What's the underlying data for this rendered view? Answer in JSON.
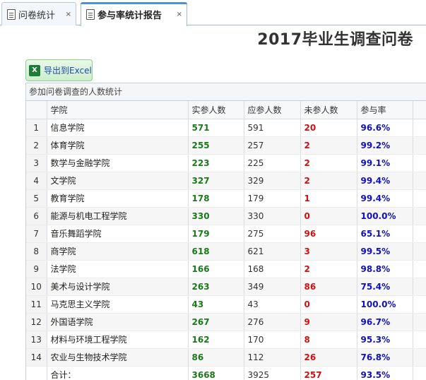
{
  "tabs": [
    {
      "label": "问卷统计",
      "close": "×",
      "active": false
    },
    {
      "label": "参与率统计报告",
      "close": "×",
      "active": true
    }
  ],
  "page_title": "2017毕业生调查问卷",
  "export_button": {
    "icon": "excel-icon",
    "label": "导出到Excel"
  },
  "grid": {
    "caption": "参加问卷调查的人数统计",
    "columns": [
      "学院",
      "实参人数",
      "应参人数",
      "未参人数",
      "参与率"
    ],
    "rows": [
      {
        "no": "1",
        "school": "信息学院",
        "actual": "571",
        "expected": "591",
        "absent": "20",
        "rate": "96.6%"
      },
      {
        "no": "2",
        "school": "体育学院",
        "actual": "255",
        "expected": "257",
        "absent": "2",
        "rate": "99.2%"
      },
      {
        "no": "3",
        "school": "数学与金融学院",
        "actual": "223",
        "expected": "225",
        "absent": "2",
        "rate": "99.1%"
      },
      {
        "no": "4",
        "school": "文学院",
        "actual": "327",
        "expected": "329",
        "absent": "2",
        "rate": "99.4%"
      },
      {
        "no": "5",
        "school": "教育学院",
        "actual": "178",
        "expected": "179",
        "absent": "1",
        "rate": "99.4%"
      },
      {
        "no": "6",
        "school": "能源与机电工程学院",
        "actual": "330",
        "expected": "330",
        "absent": "0",
        "rate": "100.0%"
      },
      {
        "no": "7",
        "school": "音乐舞蹈学院",
        "actual": "179",
        "expected": "275",
        "absent": "96",
        "rate": "65.1%"
      },
      {
        "no": "8",
        "school": "商学院",
        "actual": "618",
        "expected": "621",
        "absent": "3",
        "rate": "99.5%"
      },
      {
        "no": "9",
        "school": "法学院",
        "actual": "166",
        "expected": "168",
        "absent": "2",
        "rate": "98.8%"
      },
      {
        "no": "10",
        "school": "美术与设计学院",
        "actual": "263",
        "expected": "349",
        "absent": "86",
        "rate": "75.4%"
      },
      {
        "no": "11",
        "school": "马克思主义学院",
        "actual": "43",
        "expected": "43",
        "absent": "0",
        "rate": "100.0%"
      },
      {
        "no": "12",
        "school": "外国语学院",
        "actual": "267",
        "expected": "276",
        "absent": "9",
        "rate": "96.7%"
      },
      {
        "no": "13",
        "school": "材料与环境工程学院",
        "actual": "162",
        "expected": "170",
        "absent": "8",
        "rate": "95.3%"
      },
      {
        "no": "14",
        "school": "农业与生物技术学院",
        "actual": "86",
        "expected": "112",
        "absent": "26",
        "rate": "76.8%"
      }
    ],
    "total": {
      "label": "合计：",
      "actual": "3668",
      "expected": "3925",
      "absent": "257",
      "rate": "93.5%"
    }
  },
  "colors": {
    "actual": "#1a7a1a",
    "absent": "#d01010",
    "rate": "#1010c0",
    "tab_accent": "#4a90d6"
  }
}
